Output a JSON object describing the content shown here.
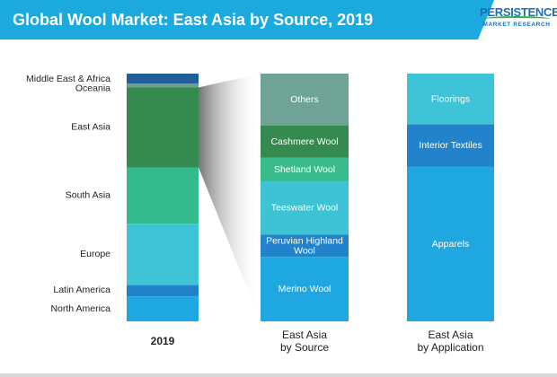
{
  "header": {
    "title": "Global Wool Market: East Asia by Source, 2019",
    "logo_main": "PERSISTENCE",
    "logo_sub": "MARKET RESEARCH"
  },
  "chart_data": [
    {
      "type": "bar",
      "stacked": true,
      "xlabel": "2019",
      "series": [
        {
          "name": "Middle East & Africa",
          "value": 4.0,
          "color": "#1f5e97"
        },
        {
          "name": "Oceania",
          "value": 1.5,
          "color": "#6d9b8c"
        },
        {
          "name": "East Asia",
          "value": 32.0,
          "color": "#348a4f"
        },
        {
          "name": "South Asia",
          "value": 22.5,
          "color": "#33bb8d"
        },
        {
          "name": "Europe",
          "value": 24.5,
          "color": "#3ec4d6"
        },
        {
          "name": "Latin America",
          "value": 4.5,
          "color": "#2283cc"
        },
        {
          "name": "North America",
          "value": 10.0,
          "color": "#1fa7e1"
        }
      ]
    },
    {
      "type": "bar",
      "stacked": true,
      "xlabel": "East Asia\nby Source",
      "series": [
        {
          "name": "Others",
          "value": 21.0,
          "color": "#6ea396"
        },
        {
          "name": "Cashmere Wool",
          "value": 13.0,
          "color": "#348a4f"
        },
        {
          "name": "Shetland Wool",
          "value": 9.5,
          "color": "#3abb8c"
        },
        {
          "name": "Teeswater Wool",
          "value": 21.5,
          "color": "#3dc3d3"
        },
        {
          "name": "Peruvian Highland\nWool",
          "value": 9.0,
          "color": "#2283cc"
        },
        {
          "name": "Merino Wool",
          "value": 26.0,
          "color": "#1fa7e1"
        }
      ]
    },
    {
      "type": "bar",
      "stacked": true,
      "xlabel": "East Asia\nby Application",
      "series": [
        {
          "name": "Floorings",
          "value": 20.5,
          "color": "#3ec4d6"
        },
        {
          "name": "Interior Textiles",
          "value": 17.0,
          "color": "#2283cc"
        },
        {
          "name": "Apparels",
          "value": 62.5,
          "color": "#1fa7e1"
        }
      ]
    }
  ]
}
